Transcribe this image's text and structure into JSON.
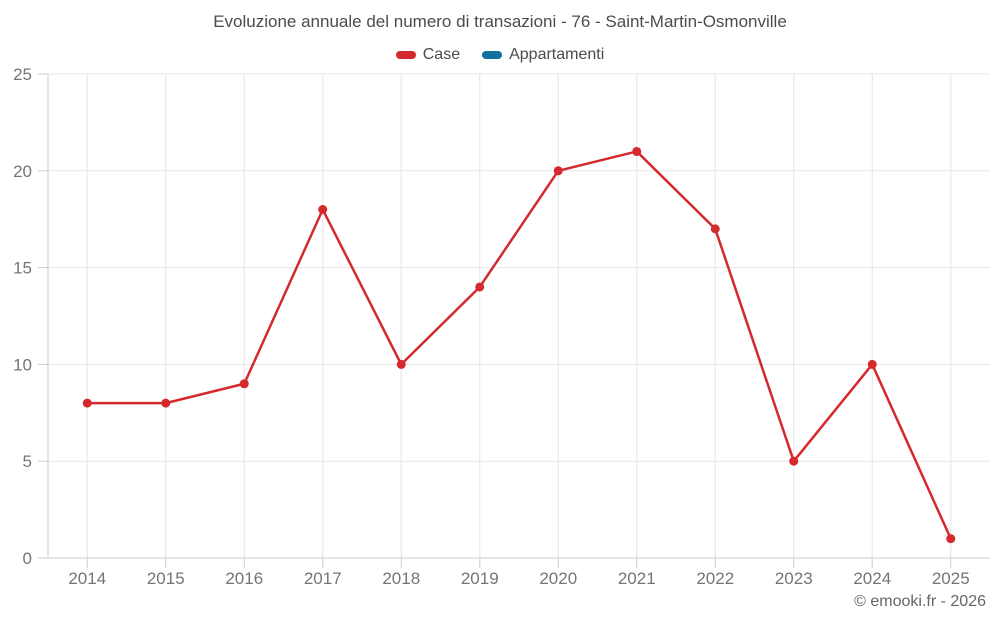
{
  "chart": {
    "title": "Evoluzione annuale del numero di transazioni - 76 - Saint-Martin-Osmonville",
    "credit": "© emooki.fr - 2026"
  },
  "legend": {
    "items": [
      {
        "label": "Case",
        "color": "#d4292d"
      },
      {
        "label": "Appartamenti",
        "color": "#11709f"
      }
    ]
  },
  "chart_data": {
    "type": "line",
    "title": "Evoluzione annuale del numero di transazioni - 76 - Saint-Martin-Osmonville",
    "categories": [
      "2014",
      "2015",
      "2016",
      "2017",
      "2018",
      "2019",
      "2020",
      "2021",
      "2022",
      "2023",
      "2024",
      "2025"
    ],
    "series": [
      {
        "name": "Case",
        "color": "#d4292d",
        "values": [
          8,
          8,
          9,
          18,
          10,
          14,
          20,
          21,
          17,
          5,
          10,
          1
        ]
      },
      {
        "name": "Appartamenti",
        "color": "#11709f",
        "values": []
      }
    ],
    "xlabel": "",
    "ylabel": "",
    "ylim": [
      0,
      25
    ],
    "y_ticks": [
      0,
      5,
      10,
      15,
      20,
      25
    ],
    "grid": true,
    "legend_position": "top",
    "colors": {
      "grid_line": "#e6e6e6",
      "axis_line": "#cccccc",
      "tick_label": "#757575",
      "title_text": "#4c4c4c"
    }
  }
}
